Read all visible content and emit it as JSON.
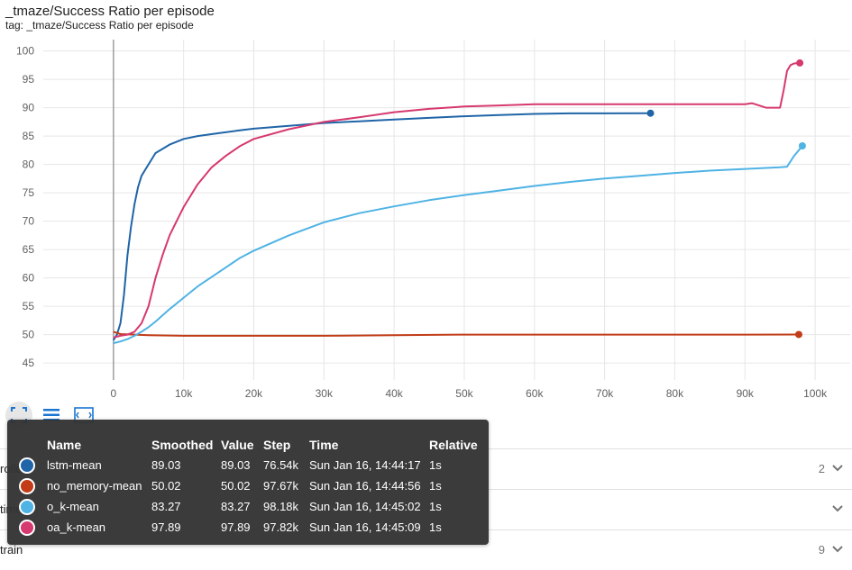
{
  "header": {
    "title": "_tmaze/Success Ratio per episode",
    "subtitle": "tag: _tmaze/Success Ratio per episode"
  },
  "chart_data": {
    "type": "line",
    "title": "_tmaze/Success Ratio per episode",
    "xlabel": "",
    "ylabel": "",
    "xlim": [
      -10000,
      105000
    ],
    "ylim": [
      42,
      102
    ],
    "x_ticks": [
      0,
      10000,
      20000,
      30000,
      40000,
      50000,
      60000,
      70000,
      80000,
      90000,
      100000
    ],
    "x_tick_labels": [
      "0",
      "10k",
      "20k",
      "30k",
      "40k",
      "50k",
      "60k",
      "70k",
      "80k",
      "90k",
      "100k"
    ],
    "y_ticks": [
      45,
      50,
      55,
      60,
      65,
      70,
      75,
      80,
      85,
      90,
      95,
      100
    ],
    "y_tick_labels": [
      "45",
      "50",
      "55",
      "60",
      "65",
      "70",
      "75",
      "80",
      "85",
      "90",
      "95",
      "100"
    ],
    "grid": true,
    "series": [
      {
        "name": "lstm-mean",
        "color": "#1f65a8",
        "x": [
          0,
          500,
          1000,
          1500,
          2000,
          2500,
          3000,
          3500,
          4000,
          5000,
          6000,
          8000,
          10000,
          12000,
          15000,
          18000,
          20000,
          25000,
          30000,
          35000,
          40000,
          45000,
          50000,
          55000,
          60000,
          65000,
          70000,
          76540
        ],
        "y": [
          49,
          50,
          52,
          57,
          64,
          69,
          73,
          76,
          78,
          80,
          82,
          83.5,
          84.5,
          85,
          85.5,
          86,
          86.3,
          86.8,
          87.3,
          87.6,
          87.9,
          88.2,
          88.5,
          88.7,
          88.9,
          89,
          89,
          89.03
        ]
      },
      {
        "name": "no_memory-mean",
        "color": "#c13c17",
        "x": [
          0,
          1000,
          3000,
          5000,
          10000,
          20000,
          30000,
          40000,
          50000,
          60000,
          70000,
          80000,
          90000,
          97670
        ],
        "y": [
          50.5,
          50.1,
          50,
          49.9,
          49.8,
          49.8,
          49.8,
          49.9,
          50,
          50,
          50,
          50,
          50,
          50.02
        ]
      },
      {
        "name": "o_k-mean",
        "color": "#4fb3e4",
        "x": [
          0,
          1000,
          2000,
          3000,
          4000,
          5000,
          6000,
          8000,
          10000,
          12000,
          15000,
          18000,
          20000,
          25000,
          30000,
          35000,
          40000,
          45000,
          50000,
          55000,
          60000,
          65000,
          70000,
          75000,
          80000,
          85000,
          90000,
          95000,
          96000,
          97000,
          98180
        ],
        "y": [
          48.5,
          48.8,
          49.2,
          49.8,
          50.5,
          51.3,
          52.3,
          54.5,
          56.5,
          58.5,
          61,
          63.5,
          64.8,
          67.5,
          69.8,
          71.4,
          72.6,
          73.7,
          74.6,
          75.4,
          76.2,
          76.9,
          77.5,
          78,
          78.5,
          78.9,
          79.2,
          79.5,
          79.6,
          81.5,
          83.27
        ]
      },
      {
        "name": "oa_k-mean",
        "color": "#d6396f",
        "x": [
          0,
          1000,
          2000,
          3000,
          4000,
          5000,
          6000,
          7000,
          8000,
          9000,
          10000,
          12000,
          14000,
          16000,
          18000,
          20000,
          25000,
          30000,
          35000,
          40000,
          45000,
          50000,
          55000,
          60000,
          65000,
          70000,
          75000,
          80000,
          85000,
          90000,
          91000,
          93000,
          95000,
          95500,
          96000,
          96500,
          97000,
          97820
        ],
        "y": [
          49.5,
          49.8,
          50,
          50.5,
          52,
          55,
          60,
          64,
          67.5,
          70,
          72.5,
          76.5,
          79.5,
          81.5,
          83.2,
          84.5,
          86.2,
          87.5,
          88.3,
          89.2,
          89.8,
          90.2,
          90.4,
          90.6,
          90.6,
          90.6,
          90.6,
          90.6,
          90.6,
          90.6,
          90.8,
          90,
          90,
          93,
          96.5,
          97.5,
          97.8,
          97.89
        ]
      }
    ],
    "legend": {
      "headers": [
        "Name",
        "Smoothed",
        "Value",
        "Step",
        "Time",
        "Relative"
      ],
      "rows": [
        {
          "name": "lstm-mean",
          "smoothed": "89.03",
          "value": "89.03",
          "step": "76.54k",
          "time": "Sun Jan 16, 14:44:17",
          "relative": "1s",
          "color": "#1f65a8"
        },
        {
          "name": "no_memory-mean",
          "smoothed": "50.02",
          "value": "50.02",
          "step": "97.67k",
          "time": "Sun Jan 16, 14:44:56",
          "relative": "1s",
          "color": "#c13c17"
        },
        {
          "name": "o_k-mean",
          "smoothed": "83.27",
          "value": "83.27",
          "step": "98.18k",
          "time": "Sun Jan 16, 14:45:02",
          "relative": "1s",
          "color": "#4fb3e4"
        },
        {
          "name": "oa_k-mean",
          "smoothed": "97.89",
          "value": "97.89",
          "step": "97.82k",
          "time": "Sun Jan 16, 14:45:09",
          "relative": "1s",
          "color": "#d6396f"
        }
      ]
    }
  },
  "toolbar": {
    "icons": [
      "fit-domain-icon",
      "toggle-log-icon",
      "expand-chart-icon"
    ]
  },
  "sections": [
    {
      "label": "rollout",
      "count": "2"
    },
    {
      "label": "time",
      "count": ""
    },
    {
      "label": "train",
      "count": "9"
    }
  ],
  "colors": {
    "lstm": "#1f65a8",
    "no_memory": "#c13c17",
    "o_k": "#4fb3e4",
    "oa_k": "#d6396f",
    "toolbar_icon": "#1976d2"
  }
}
